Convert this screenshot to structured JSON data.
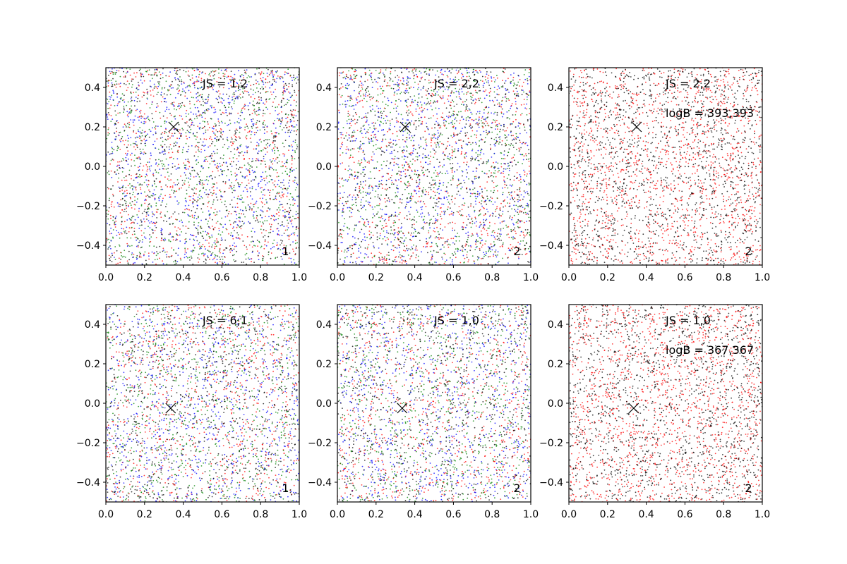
{
  "chart_data": [
    {
      "type": "scatter",
      "title": "",
      "xlabel": "",
      "ylabel": "",
      "xlim": [
        0.0,
        1.0
      ],
      "ylim": [
        -0.5,
        0.5
      ],
      "xticks": [
        "0.0",
        "0.2",
        "0.4",
        "0.6",
        "0.8",
        "1.0"
      ],
      "yticks": [
        "−0.4",
        "−0.2",
        "0.0",
        "0.2",
        "0.4"
      ],
      "grid": false,
      "annotations": [
        "JS = 1,2"
      ],
      "corner_label": "1",
      "marker": {
        "symbol": "x",
        "x": 0.35,
        "y": 0.2
      },
      "point_colors": [
        "#ff0000",
        "#008000",
        "#0000ff",
        "#000000"
      ],
      "points_per_color": 800
    },
    {
      "type": "scatter",
      "title": "",
      "xlabel": "",
      "ylabel": "",
      "xlim": [
        0.0,
        1.0
      ],
      "ylim": [
        -0.5,
        0.5
      ],
      "xticks": [
        "0.0",
        "0.2",
        "0.4",
        "0.6",
        "0.8",
        "1.0"
      ],
      "yticks": [
        "−0.4",
        "−0.2",
        "0.0",
        "0.2",
        "0.4"
      ],
      "grid": false,
      "annotations": [
        "JS = 2,2"
      ],
      "corner_label": "2",
      "marker": {
        "symbol": "x",
        "x": 0.35,
        "y": 0.2
      },
      "point_colors": [
        "#ff0000",
        "#008000",
        "#0000ff",
        "#000000"
      ],
      "points_per_color": 800
    },
    {
      "type": "scatter",
      "title": "",
      "xlabel": "",
      "ylabel": "",
      "xlim": [
        0.0,
        1.0
      ],
      "ylim": [
        -0.5,
        0.5
      ],
      "xticks": [
        "0.0",
        "0.2",
        "0.4",
        "0.6",
        "0.8",
        "1.0"
      ],
      "yticks": [
        "−0.4",
        "−0.2",
        "0.0",
        "0.2",
        "0.4"
      ],
      "grid": false,
      "annotations": [
        "JS = 2,2",
        "logB = 393,393"
      ],
      "corner_label": "2",
      "marker": {
        "symbol": "x",
        "x": 0.35,
        "y": 0.2
      },
      "point_colors": [
        "#ff0000",
        "#000000"
      ],
      "points_per_color": 1500
    },
    {
      "type": "scatter",
      "title": "",
      "xlabel": "",
      "ylabel": "",
      "xlim": [
        0.0,
        1.0
      ],
      "ylim": [
        -0.5,
        0.5
      ],
      "xticks": [
        "0.0",
        "0.2",
        "0.4",
        "0.6",
        "0.8",
        "1.0"
      ],
      "yticks": [
        "−0.4",
        "−0.2",
        "0.0",
        "0.2",
        "0.4"
      ],
      "grid": false,
      "annotations": [
        "JS = 6,1"
      ],
      "corner_label": "1",
      "marker": {
        "symbol": "x",
        "x": 0.335,
        "y": -0.025
      },
      "point_colors": [
        "#ff0000",
        "#008000",
        "#0000ff",
        "#000000"
      ],
      "points_per_color": 800
    },
    {
      "type": "scatter",
      "title": "",
      "xlabel": "",
      "ylabel": "",
      "xlim": [
        0.0,
        1.0
      ],
      "ylim": [
        -0.5,
        0.5
      ],
      "xticks": [
        "0.0",
        "0.2",
        "0.4",
        "0.6",
        "0.8",
        "1.0"
      ],
      "yticks": [
        "−0.4",
        "−0.2",
        "0.0",
        "0.2",
        "0.4"
      ],
      "grid": false,
      "annotations": [
        "JS = 1,0"
      ],
      "corner_label": "2",
      "marker": {
        "symbol": "x",
        "x": 0.335,
        "y": -0.025
      },
      "point_colors": [
        "#ff0000",
        "#008000",
        "#0000ff",
        "#000000"
      ],
      "points_per_color": 800
    },
    {
      "type": "scatter",
      "title": "",
      "xlabel": "",
      "ylabel": "",
      "xlim": [
        0.0,
        1.0
      ],
      "ylim": [
        -0.5,
        0.5
      ],
      "xticks": [
        "0.0",
        "0.2",
        "0.4",
        "0.6",
        "0.8",
        "1.0"
      ],
      "yticks": [
        "−0.4",
        "−0.2",
        "0.0",
        "0.2",
        "0.4"
      ],
      "grid": false,
      "annotations": [
        "JS = 1,0",
        "logB = 367,367"
      ],
      "corner_label": "2",
      "marker": {
        "symbol": "x",
        "x": 0.335,
        "y": -0.025
      },
      "point_colors": [
        "#ff0000",
        "#000000"
      ],
      "points_per_color": 1500
    }
  ]
}
